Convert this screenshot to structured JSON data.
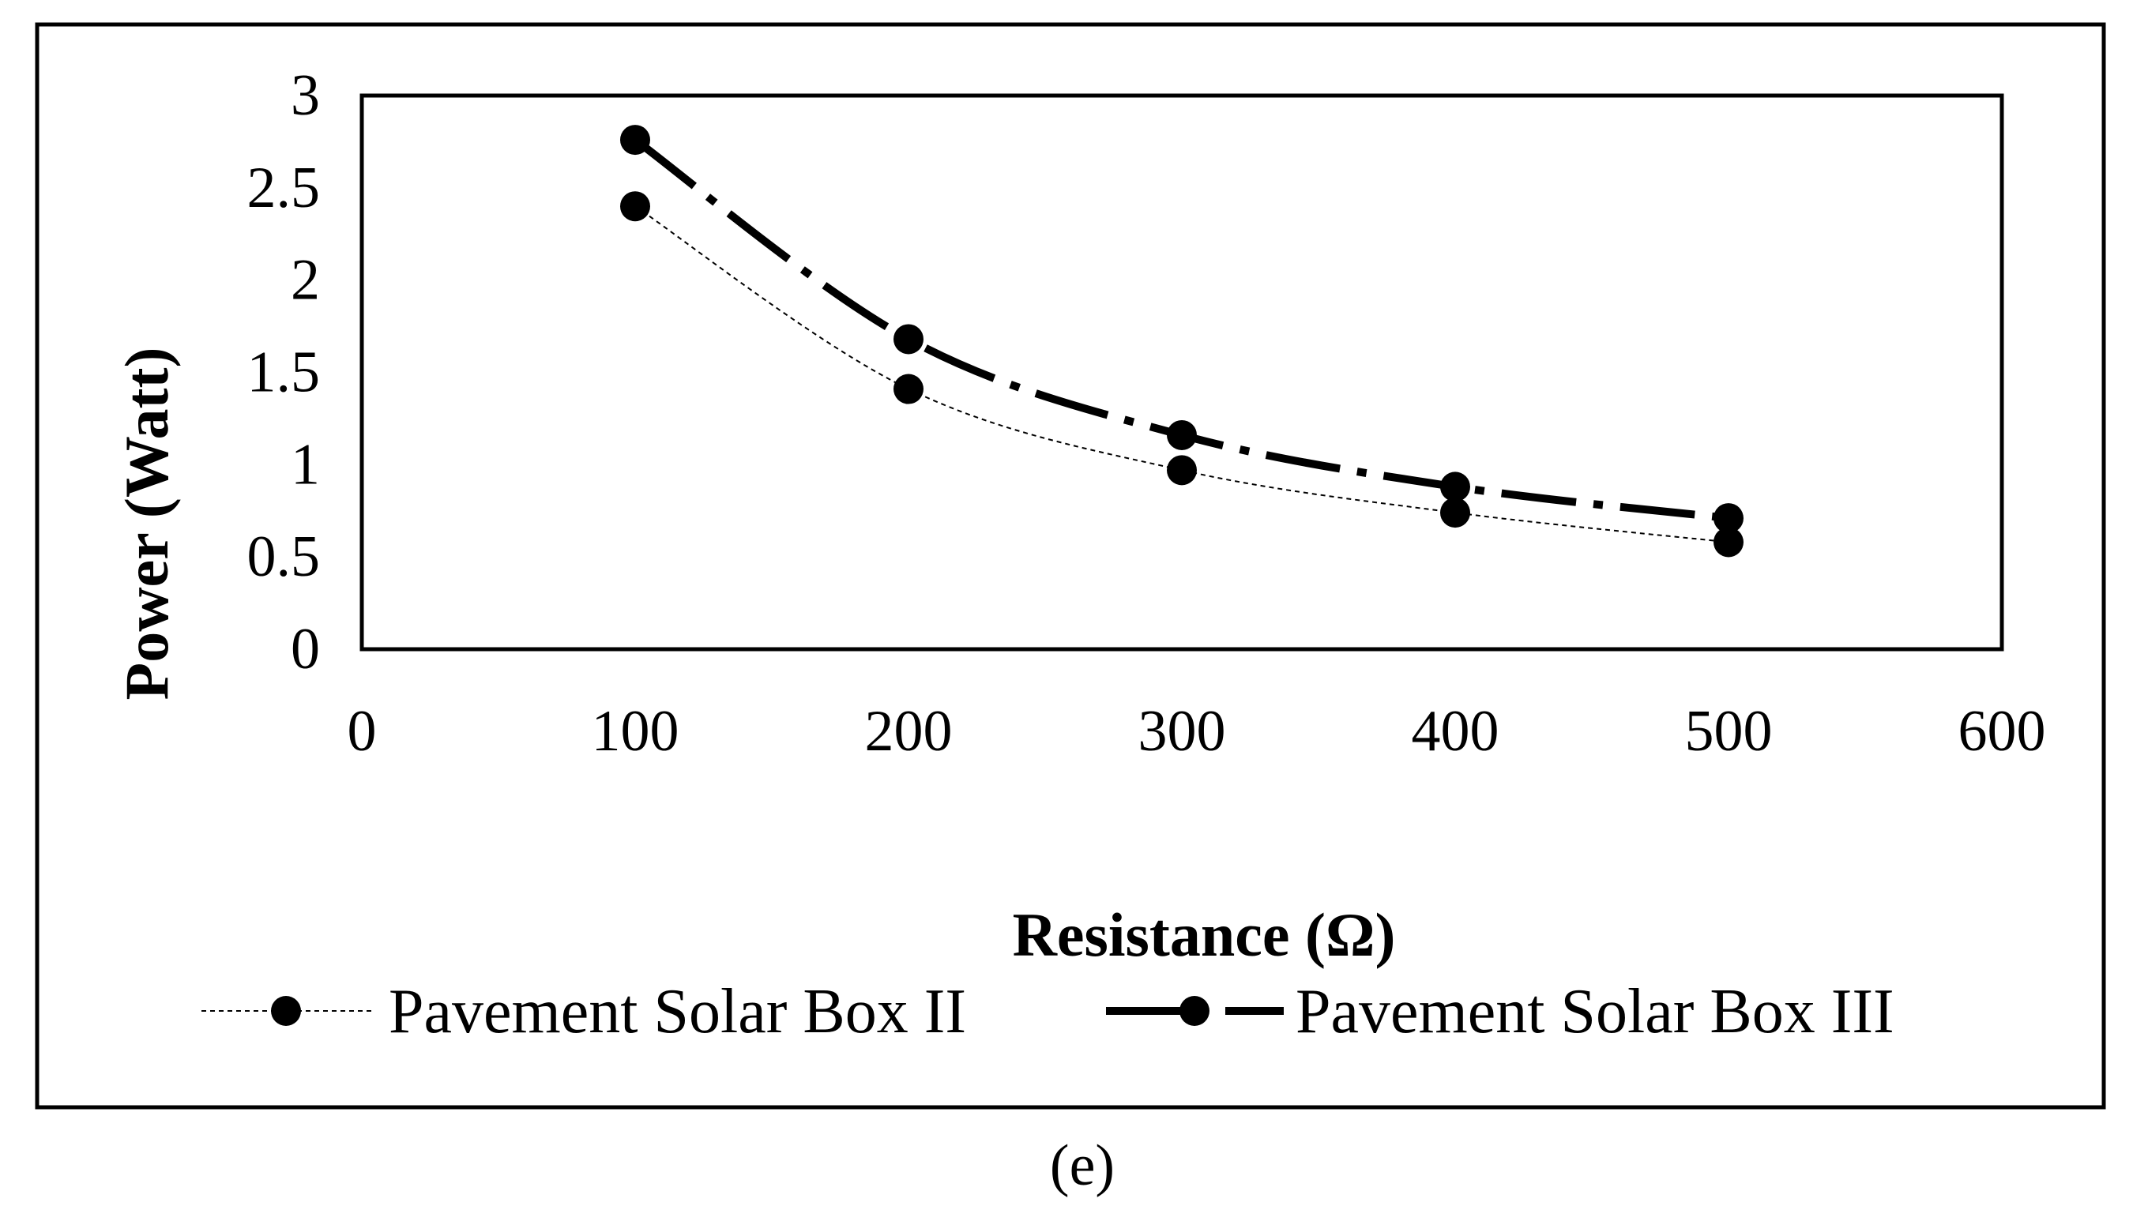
{
  "chart_data": {
    "type": "line",
    "title": "",
    "xlabel": "Resistance (Ω)",
    "ylabel": "Power (Watt)",
    "xlim": [
      0,
      600
    ],
    "ylim": [
      0,
      3
    ],
    "x_ticks": [
      "0",
      "100",
      "200",
      "300",
      "400",
      "500",
      "600"
    ],
    "y_ticks": [
      "0",
      "0.5",
      "1",
      "1.5",
      "2",
      "2.5",
      "3"
    ],
    "grid": false,
    "legend_position": "bottom",
    "series": [
      {
        "name": "Pavement Solar Box II",
        "style": "dotted-thin",
        "color": "#000000",
        "x": [
          100,
          200,
          300,
          400,
          500
        ],
        "y": [
          2.4,
          1.41,
          0.97,
          0.74,
          0.58
        ]
      },
      {
        "name": "Pavement Solar Box III",
        "style": "dash-dot-thick",
        "color": "#000000",
        "x": [
          100,
          200,
          300,
          400,
          500
        ],
        "y": [
          2.76,
          1.68,
          1.16,
          0.88,
          0.71
        ]
      }
    ]
  },
  "caption": "(e)"
}
